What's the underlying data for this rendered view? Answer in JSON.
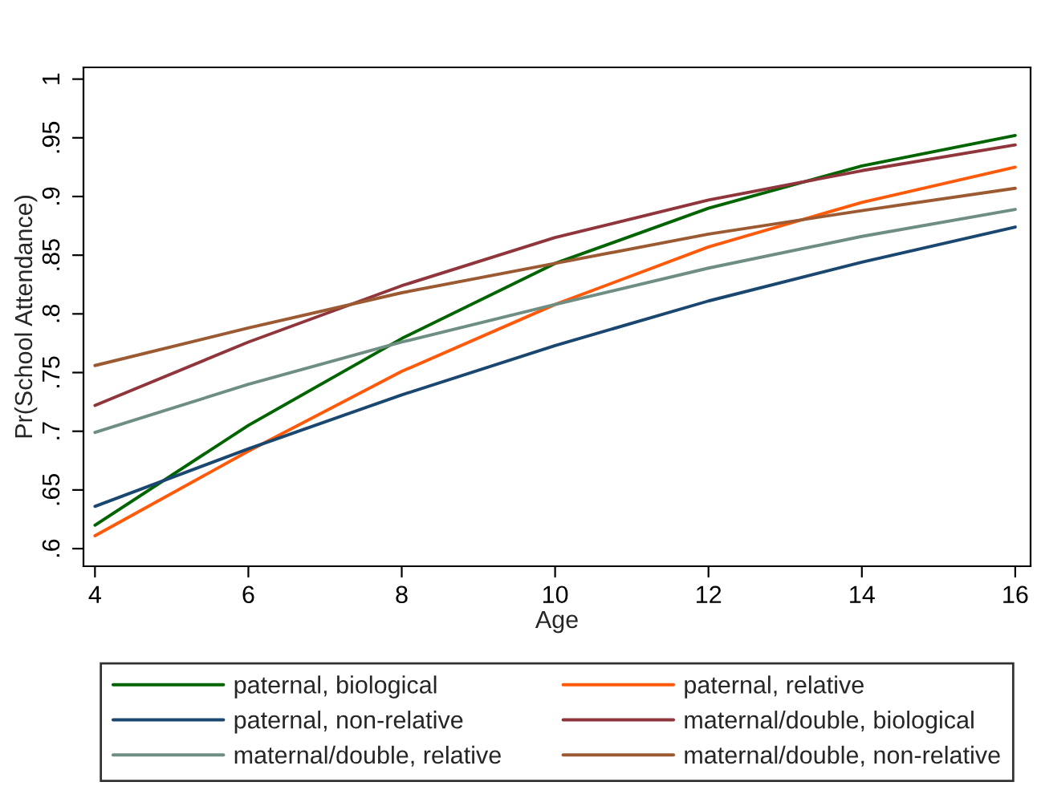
{
  "chart_data": {
    "type": "line",
    "xlabel": "Age",
    "ylabel": "Pr(School Attendance)",
    "x": [
      4,
      6,
      8,
      10,
      12,
      14,
      16
    ],
    "xlim": [
      3.85,
      16.2
    ],
    "xticks": [
      4,
      6,
      8,
      10,
      12,
      14,
      16
    ],
    "ylim": [
      0.585,
      1.01
    ],
    "yticks": [
      {
        "value": 0.6,
        "label": ".6"
      },
      {
        "value": 0.65,
        "label": ".65"
      },
      {
        "value": 0.7,
        "label": ".7"
      },
      {
        "value": 0.75,
        "label": ".75"
      },
      {
        "value": 0.8,
        "label": ".8"
      },
      {
        "value": 0.85,
        "label": ".85"
      },
      {
        "value": 0.9,
        "label": ".9"
      },
      {
        "value": 0.95,
        "label": ".95"
      },
      {
        "value": 1,
        "label": "1"
      }
    ],
    "grid": false,
    "legend": "bottom",
    "marker": "none",
    "line_style": "solid",
    "series": [
      {
        "name": "paternal, biological",
        "color": "#006400",
        "values": [
          0.62,
          0.705,
          0.779,
          0.843,
          0.89,
          0.926,
          0.952
        ]
      },
      {
        "name": "paternal, relative",
        "color": "#ff5a0a",
        "values": [
          0.611,
          0.683,
          0.751,
          0.808,
          0.857,
          0.895,
          0.925
        ]
      },
      {
        "name": "paternal, non-relative",
        "color": "#1a476f",
        "values": [
          0.636,
          0.685,
          0.731,
          0.773,
          0.811,
          0.844,
          0.874
        ]
      },
      {
        "name": "maternal/double, biological",
        "color": "#90353b",
        "values": [
          0.722,
          0.776,
          0.824,
          0.865,
          0.897,
          0.922,
          0.944
        ]
      },
      {
        "name": "maternal/double, relative",
        "color": "#6e8e84",
        "values": [
          0.699,
          0.74,
          0.776,
          0.808,
          0.839,
          0.866,
          0.889
        ]
      },
      {
        "name": "maternal/double, non-relative",
        "color": "#9c5a33",
        "values": [
          0.756,
          0.788,
          0.818,
          0.843,
          0.868,
          0.888,
          0.907
        ]
      }
    ]
  }
}
